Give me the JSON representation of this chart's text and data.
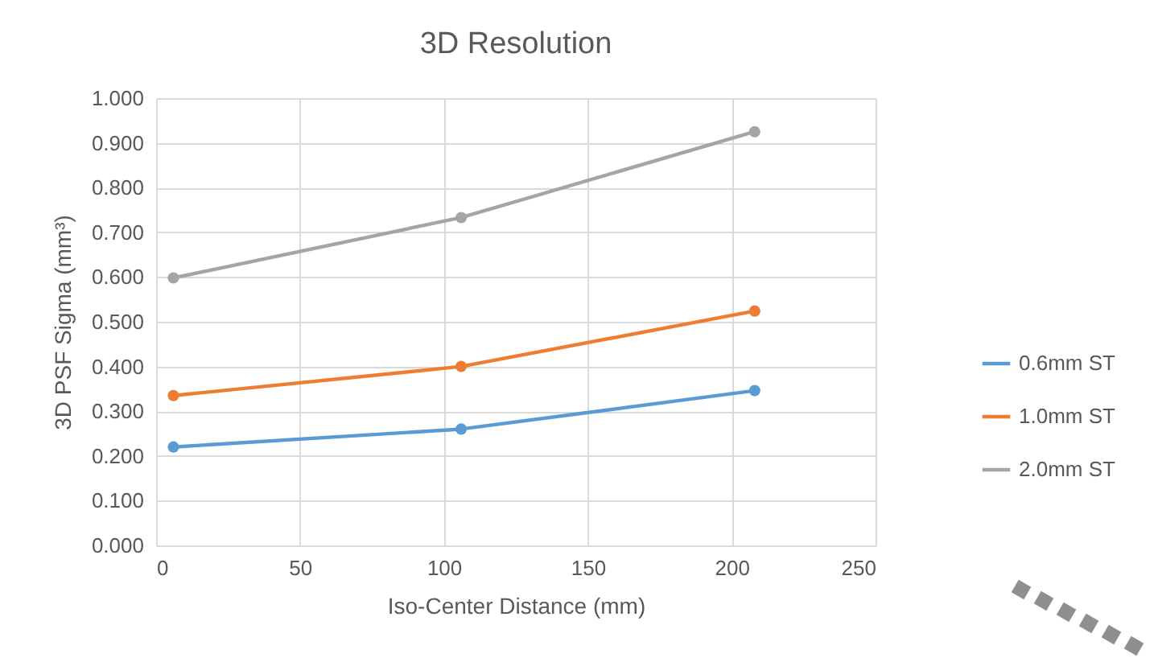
{
  "chart_data": {
    "type": "line",
    "title": "3D Resolution",
    "xlabel": "Iso-Center Distance (mm)",
    "ylabel": "3D PSF Sigma (mm³)",
    "x": [
      6,
      106,
      208
    ],
    "series": [
      {
        "name": "0.6mm ST",
        "color": "#5b9bd5",
        "values": [
          0.22,
          0.26,
          0.346
        ]
      },
      {
        "name": "1.0mm ST",
        "color": "#ed7d31",
        "values": [
          0.335,
          0.4,
          0.524
        ]
      },
      {
        "name": "2.0mm ST",
        "color": "#a5a5a5",
        "values": [
          0.598,
          0.733,
          0.925
        ]
      }
    ],
    "xlim": [
      0,
      250
    ],
    "xticks": [
      0,
      50,
      100,
      150,
      200,
      250
    ],
    "ylim": [
      0,
      1
    ],
    "yticks": [
      {
        "value": 0,
        "label": "0.000"
      },
      {
        "value": 0.1,
        "label": "0.100"
      },
      {
        "value": 0.2,
        "label": "0.200"
      },
      {
        "value": 0.3,
        "label": "0.300"
      },
      {
        "value": 0.4,
        "label": "0.400"
      },
      {
        "value": 0.5,
        "label": "0.500"
      },
      {
        "value": 0.6,
        "label": "0.600"
      },
      {
        "value": 0.7,
        "label": "0.700"
      },
      {
        "value": 0.8,
        "label": "0.800"
      },
      {
        "value": 0.9,
        "label": "0.900"
      },
      {
        "value": 1,
        "label": "1.000"
      }
    ],
    "grid": true,
    "legend": "right",
    "marker": "circle",
    "line_style": "solid"
  }
}
